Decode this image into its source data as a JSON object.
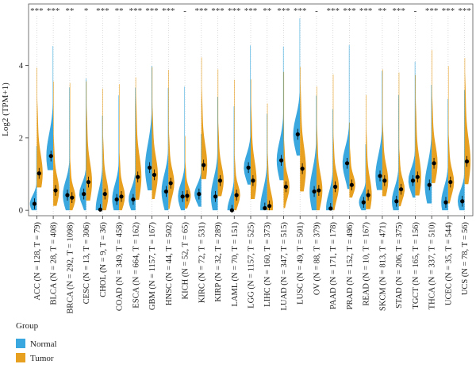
{
  "chart_data": {
    "type": "violin",
    "ylabel": "Log2 (TPM+1)",
    "y_ticks": [
      "0",
      "2",
      "4"
    ],
    "ylim": [
      -0.15,
      5.7
    ],
    "legend": {
      "title": "Group",
      "placement": "bottom-left"
    },
    "colors": {
      "Normal": "#3aa8de",
      "Tumor": "#e8a020",
      "median": "#000000",
      "grid": "#cccccc"
    },
    "series": [
      {
        "name": "Normal",
        "medians": [
          0.18,
          1.5,
          0.42,
          0.45,
          0.02,
          0.3,
          0.3,
          1.18,
          0.52,
          0.38,
          0.45,
          0.38,
          0.0,
          1.18,
          0.06,
          1.38,
          2.1,
          0.52,
          0.05,
          1.3,
          0.22,
          0.95,
          0.25,
          0.82,
          0.7,
          0.22,
          0.25
        ]
      },
      {
        "name": "Tumor",
        "medians": [
          1.02,
          0.55,
          0.35,
          0.78,
          0.45,
          0.38,
          0.92,
          0.98,
          0.75,
          0.4,
          1.25,
          0.82,
          0.42,
          0.82,
          0.12,
          0.65,
          1.15,
          0.55,
          0.65,
          0.7,
          0.42,
          0.82,
          0.58,
          0.92,
          1.3,
          0.78,
          1.35
        ]
      }
    ],
    "categories": [
      "ACC (N = 128, T = 79)",
      "BLCA (N = 28, T = 408)",
      "BRCA (N = 292, T = 1098)",
      "CESC (N = 13, T = 306)",
      "CHOL (N = 9, T = 36)",
      "COAD (N = 349, T = 458)",
      "ESCA (N = 664, T = 162)",
      "GBM (N = 1157, T = 167)",
      "HNSC (N = 44, T = 502)",
      "KICH (N = 52, T = 65)",
      "KIRC (N = 72, T = 531)",
      "KIRP (N = 32, T = 289)",
      "LAML (N = 70, T = 151)",
      "LGG (N = 1157, T = 525)",
      "LIHC (N = 160, T = 373)",
      "LUAD (N = 347, T = 515)",
      "LUSC (N = 49, T = 501)",
      "OV (N = 88, T = 379)",
      "PAAD (N = 171, T = 178)",
      "PRAD (N = 152, T = 496)",
      "READ (N = 10, T = 167)",
      "SKCM (N = 813, T = 471)",
      "STAD (N = 206, T = 375)",
      "TGCT (N = 165, T = 156)",
      "THCA (N = 337, T = 510)",
      "UCEC (N = 35, T = 544)",
      "UCS (N = 78, T = 56)"
    ],
    "significance": [
      "***",
      "***",
      "**",
      "*",
      "***",
      "**",
      "***",
      "***",
      "***",
      "-",
      "***",
      "***",
      "***",
      "***",
      "**",
      "***",
      "***",
      "-",
      "***",
      "***",
      "***",
      "**",
      "***",
      "-",
      "***",
      "***",
      "***"
    ]
  }
}
